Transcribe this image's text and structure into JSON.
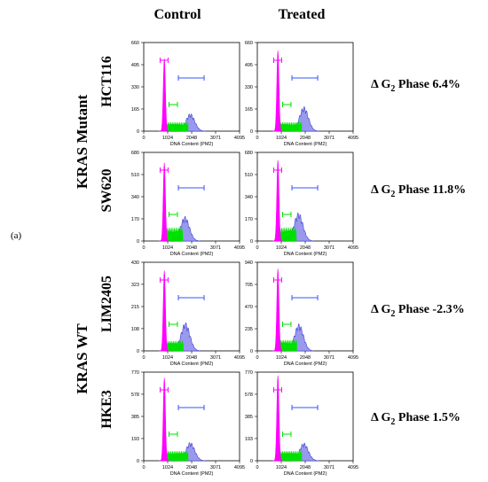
{
  "panel_label": "(a)",
  "columns": [
    "Control",
    "Treated"
  ],
  "groups": [
    "KRAS Mutant",
    "KRAS WT"
  ],
  "colors": {
    "g1": "#ff00ff",
    "s": "#00e000",
    "g2": "#9999ee",
    "g2_outline": "#4444cc",
    "marker": "#3355ff"
  },
  "chart_data": [
    {
      "type": "histogram",
      "cell_line": "HCT116",
      "condition": "Control",
      "xlabel": "DNA Content (PM2)",
      "xlim": [
        0,
        4095
      ],
      "xticks": [
        0,
        1024,
        2048,
        3071,
        4095
      ],
      "yticks": [
        0,
        165,
        330,
        495,
        660
      ],
      "ylim": [
        0,
        660
      ],
      "g1_peak": [
        880,
        540
      ],
      "s_level": 55,
      "g2_peak": [
        1990,
        115
      ]
    },
    {
      "type": "histogram",
      "cell_line": "HCT116",
      "condition": "Treated",
      "xlabel": "DNA Content (PM2)",
      "xlim": [
        0,
        4095
      ],
      "xticks": [
        0,
        1024,
        2048,
        3071,
        4095
      ],
      "yticks": [
        0,
        165,
        330,
        495,
        660
      ],
      "ylim": [
        0,
        660
      ],
      "g1_peak": [
        880,
        600
      ],
      "s_level": 55,
      "g2_peak": [
        1990,
        160
      ]
    },
    {
      "type": "histogram",
      "cell_line": "SW620",
      "condition": "Control",
      "xlabel": "DNA Content (PM2)",
      "xlim": [
        0,
        4095
      ],
      "xticks": [
        0,
        1024,
        2048,
        3071,
        4095
      ],
      "yticks": [
        0,
        170,
        340,
        510,
        680
      ],
      "ylim": [
        0,
        680
      ],
      "g1_peak": [
        880,
        600
      ],
      "s_level": 85,
      "g2_peak": [
        1760,
        165
      ]
    },
    {
      "type": "histogram",
      "cell_line": "SW620",
      "condition": "Treated",
      "xlabel": "DNA Content (PM2)",
      "xlim": [
        0,
        4095
      ],
      "xticks": [
        0,
        1024,
        2048,
        3071,
        4095
      ],
      "yticks": [
        0,
        170,
        340,
        510,
        680
      ],
      "ylim": [
        0,
        680
      ],
      "g1_peak": [
        880,
        620
      ],
      "s_level": 85,
      "g2_peak": [
        1760,
        190
      ]
    },
    {
      "type": "histogram",
      "cell_line": "LIM2405",
      "condition": "Control",
      "xlabel": "DNA Content (PM2)",
      "xlim": [
        0,
        4095
      ],
      "xticks": [
        0,
        1024,
        2048,
        3071,
        4095
      ],
      "yticks": [
        0,
        108,
        215,
        323,
        430
      ],
      "ylim": [
        0,
        430
      ],
      "g1_peak": [
        880,
        390
      ],
      "s_level": 40,
      "g2_peak": [
        1780,
        120
      ]
    },
    {
      "type": "histogram",
      "cell_line": "LIM2405",
      "condition": "Treated",
      "xlabel": "DNA Content (PM2)",
      "xlim": [
        0,
        4095
      ],
      "xticks": [
        0,
        1024,
        2048,
        3071,
        4095
      ],
      "yticks": [
        0,
        235,
        470,
        705,
        940
      ],
      "ylim": [
        0,
        940
      ],
      "g1_peak": [
        880,
        870
      ],
      "s_level": 95,
      "g2_peak": [
        1780,
        250
      ]
    },
    {
      "type": "histogram",
      "cell_line": "HKE3",
      "condition": "Control",
      "xlabel": "DNA Content (PM2)",
      "xlim": [
        0,
        4095
      ],
      "xticks": [
        0,
        1024,
        2048,
        3071,
        4095
      ],
      "yticks": [
        0,
        193,
        385,
        578,
        770
      ],
      "ylim": [
        0,
        770
      ],
      "g1_peak": [
        880,
        720
      ],
      "s_level": 70,
      "g2_peak": [
        1990,
        140
      ]
    },
    {
      "type": "histogram",
      "cell_line": "HKE3",
      "condition": "Treated",
      "xlabel": "DNA Content (PM2)",
      "xlim": [
        0,
        4095
      ],
      "xticks": [
        0,
        1024,
        2048,
        3071,
        4095
      ],
      "yticks": [
        0,
        193,
        385,
        578,
        770
      ],
      "ylim": [
        0,
        770
      ],
      "g1_peak": [
        880,
        740
      ],
      "s_level": 70,
      "g2_peak": [
        1990,
        135
      ]
    }
  ],
  "rows": [
    {
      "cell_line": "HCT116",
      "delta": {
        "prefix": "Δ G",
        "sub": "2",
        "text": " Phase 6.4%"
      }
    },
    {
      "cell_line": "SW620",
      "delta": {
        "prefix": "Δ G",
        "sub": "2",
        "text": " Phase 11.8%"
      }
    },
    {
      "cell_line": "LIM2405",
      "delta": {
        "prefix": "Δ G",
        "sub": "2",
        "text": " Phase -2.3%"
      }
    },
    {
      "cell_line": "HKE3",
      "delta": {
        "prefix": "Δ G",
        "sub": "2",
        "text": " Phase 1.5%"
      }
    }
  ]
}
